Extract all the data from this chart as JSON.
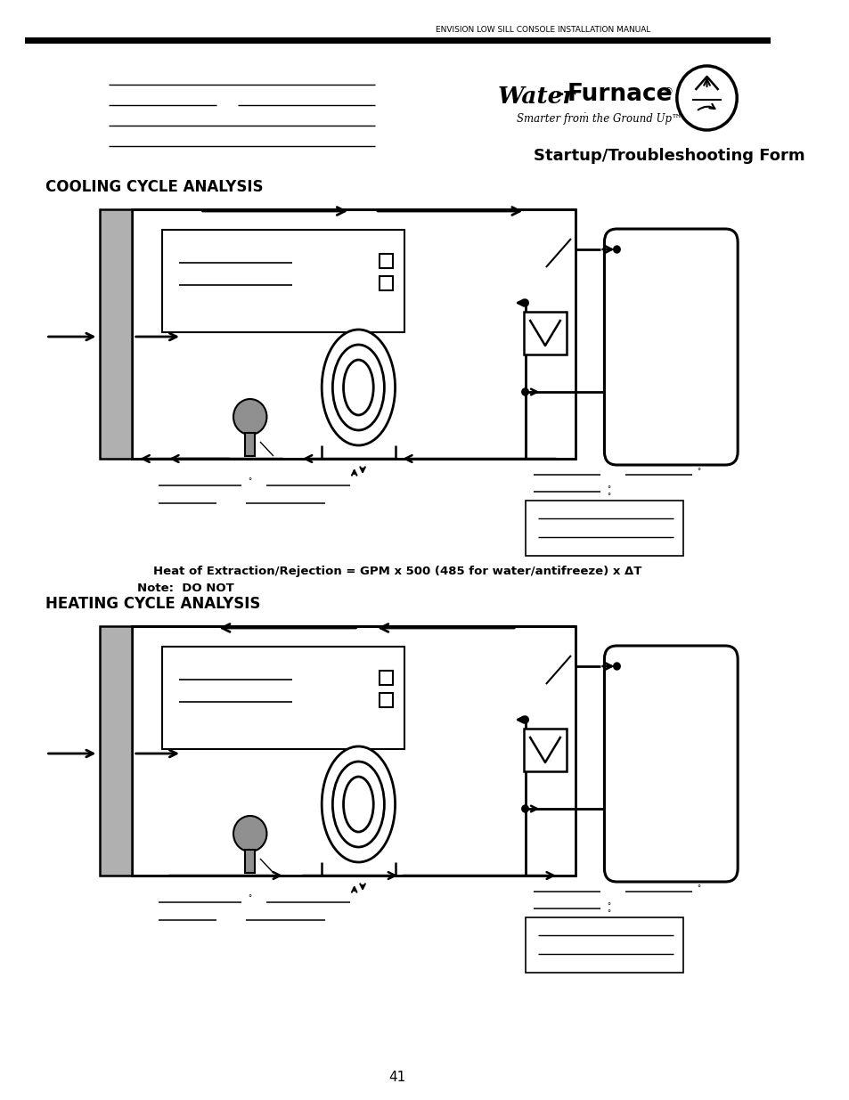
{
  "header_text": "ENVISION LOW SILL CONSOLE INSTALLATION MANUAL",
  "title": "Startup/Troubleshooting Form",
  "cooling_title": "COOLING CYCLE ANALYSIS",
  "heating_title": "HEATING CYCLE ANALYSIS",
  "formula_text": "Heat of Extraction/Rejection = GPM x 500 (485 for water/antifreeze) x ΔT",
  "note_text": "Note:  DO NOT",
  "page_number": "41",
  "bg_color": "#ffffff",
  "line_color": "#000000",
  "gray_color": "#888888"
}
